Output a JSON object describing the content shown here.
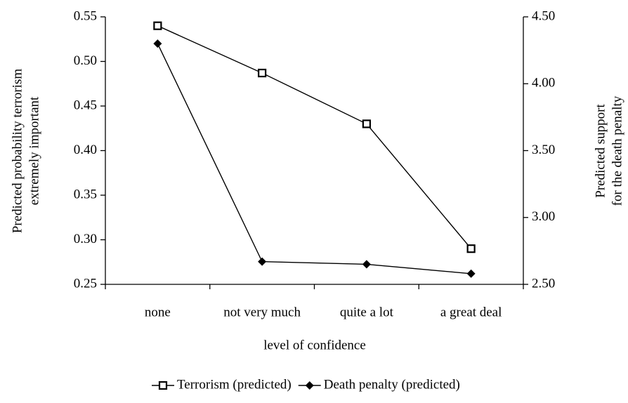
{
  "chart_data": {
    "type": "line",
    "xlabel": "level of confidence",
    "ylabel": [
      "Predicted probability  terrorism",
      "extremely important"
    ],
    "y2label": [
      "Predicted support",
      "for the death penalty"
    ],
    "categories": [
      "none",
      "not very much",
      "quite a lot",
      "a great deal"
    ],
    "series": [
      {
        "name": "Terrorism (predicted)",
        "color": "#000000",
        "marker": "square",
        "values": [
          0.54,
          0.487,
          0.43,
          0.29
        ]
      },
      {
        "name": "Death penalty (predicted)",
        "color": "#000000",
        "marker": "diamond",
        "axis": "y2",
        "values": [
          4.3,
          2.67,
          2.65,
          2.58
        ]
      }
    ],
    "ylim": [
      0.25,
      0.55
    ],
    "yticks": [
      {
        "value": 0.25,
        "label": "0.25"
      },
      {
        "value": 0.3,
        "label": "0.30"
      },
      0.35,
      {
        "value": 0.4,
        "label": "0.40"
      },
      0.45,
      {
        "value": 0.5,
        "label": "0.50"
      },
      0.55
    ],
    "y2lim": [
      2.5,
      4.5
    ],
    "y2ticks": [
      {
        "value": 2.5,
        "label": "2.50"
      },
      {
        "value": 3,
        "label": "3.00"
      },
      {
        "value": 3.5,
        "label": "3.50"
      },
      {
        "value": 4,
        "label": "4.00"
      },
      {
        "value": 4.5,
        "label": "4.50"
      }
    ],
    "legend": "bottom"
  }
}
